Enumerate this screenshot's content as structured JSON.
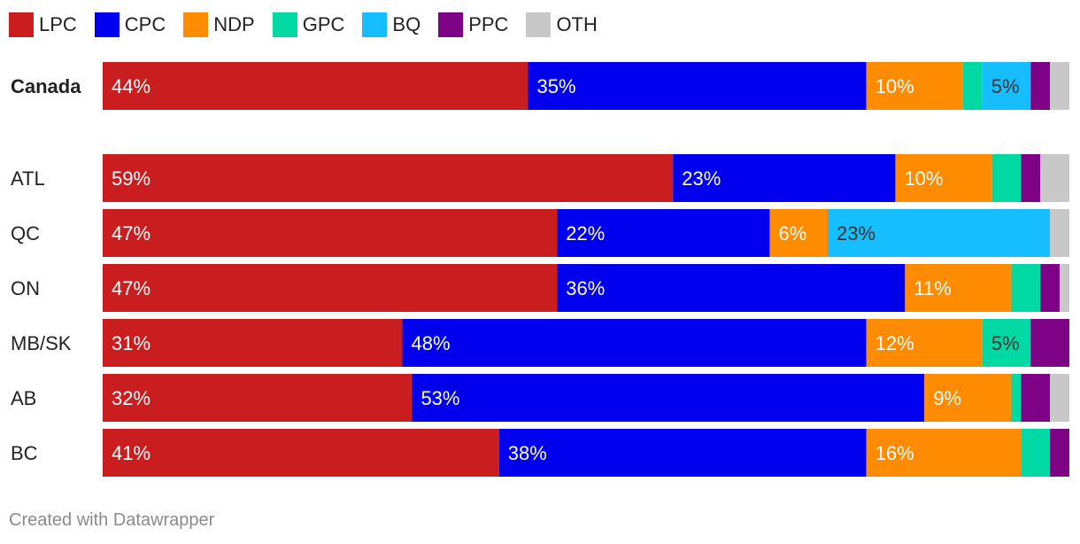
{
  "legend": [
    {
      "key": "LPC",
      "color": "#c91d1f"
    },
    {
      "key": "CPC",
      "color": "#0000ee"
    },
    {
      "key": "NDP",
      "color": "#ff8c00"
    },
    {
      "key": "GPC",
      "color": "#00d9a3"
    },
    {
      "key": "BQ",
      "color": "#16bdff"
    },
    {
      "key": "PPC",
      "color": "#7d0285"
    },
    {
      "key": "OTH",
      "color": "#c8c8c8"
    }
  ],
  "chart_data": {
    "type": "bar",
    "orientation": "horizontal",
    "stacked": true,
    "xlim": [
      0,
      100
    ],
    "categories": [
      "Canada",
      "ATL",
      "QC",
      "ON",
      "MB/SK",
      "AB",
      "BC"
    ],
    "series": [
      {
        "name": "LPC",
        "values": [
          44,
          59,
          47,
          47,
          31,
          32,
          41
        ]
      },
      {
        "name": "CPC",
        "values": [
          35,
          23,
          22,
          36,
          48,
          53,
          38
        ]
      },
      {
        "name": "NDP",
        "values": [
          10,
          10,
          6,
          11,
          12,
          9,
          16
        ]
      },
      {
        "name": "GPC",
        "values": [
          2,
          3,
          0,
          3,
          5,
          1,
          3
        ]
      },
      {
        "name": "BQ",
        "values": [
          5,
          0,
          23,
          0,
          0,
          0,
          0
        ]
      },
      {
        "name": "PPC",
        "values": [
          2,
          2,
          0,
          2,
          4,
          3,
          2
        ]
      },
      {
        "name": "OTH",
        "values": [
          2,
          3,
          2,
          1,
          0,
          2,
          0
        ]
      }
    ],
    "data_labels": [
      [
        44,
        35,
        10,
        null,
        5,
        null,
        null
      ],
      [
        59,
        23,
        10,
        null,
        null,
        null,
        null
      ],
      [
        47,
        22,
        6,
        null,
        23,
        null,
        null
      ],
      [
        47,
        36,
        11,
        null,
        null,
        null,
        null
      ],
      [
        31,
        48,
        12,
        5,
        null,
        null,
        null
      ],
      [
        32,
        53,
        9,
        null,
        null,
        null,
        null
      ],
      [
        41,
        38,
        16,
        null,
        null,
        null,
        null
      ]
    ],
    "label_colors": {
      "LPC": "#ffffff",
      "CPC": "#ffffff",
      "NDP": "#ffffff",
      "GPC": "#333333",
      "BQ": "#333333",
      "PPC": "#ffffff",
      "OTH": "#333333"
    },
    "bold_categories": [
      "Canada"
    ]
  },
  "footer": {
    "text": "Created with Datawrapper"
  }
}
